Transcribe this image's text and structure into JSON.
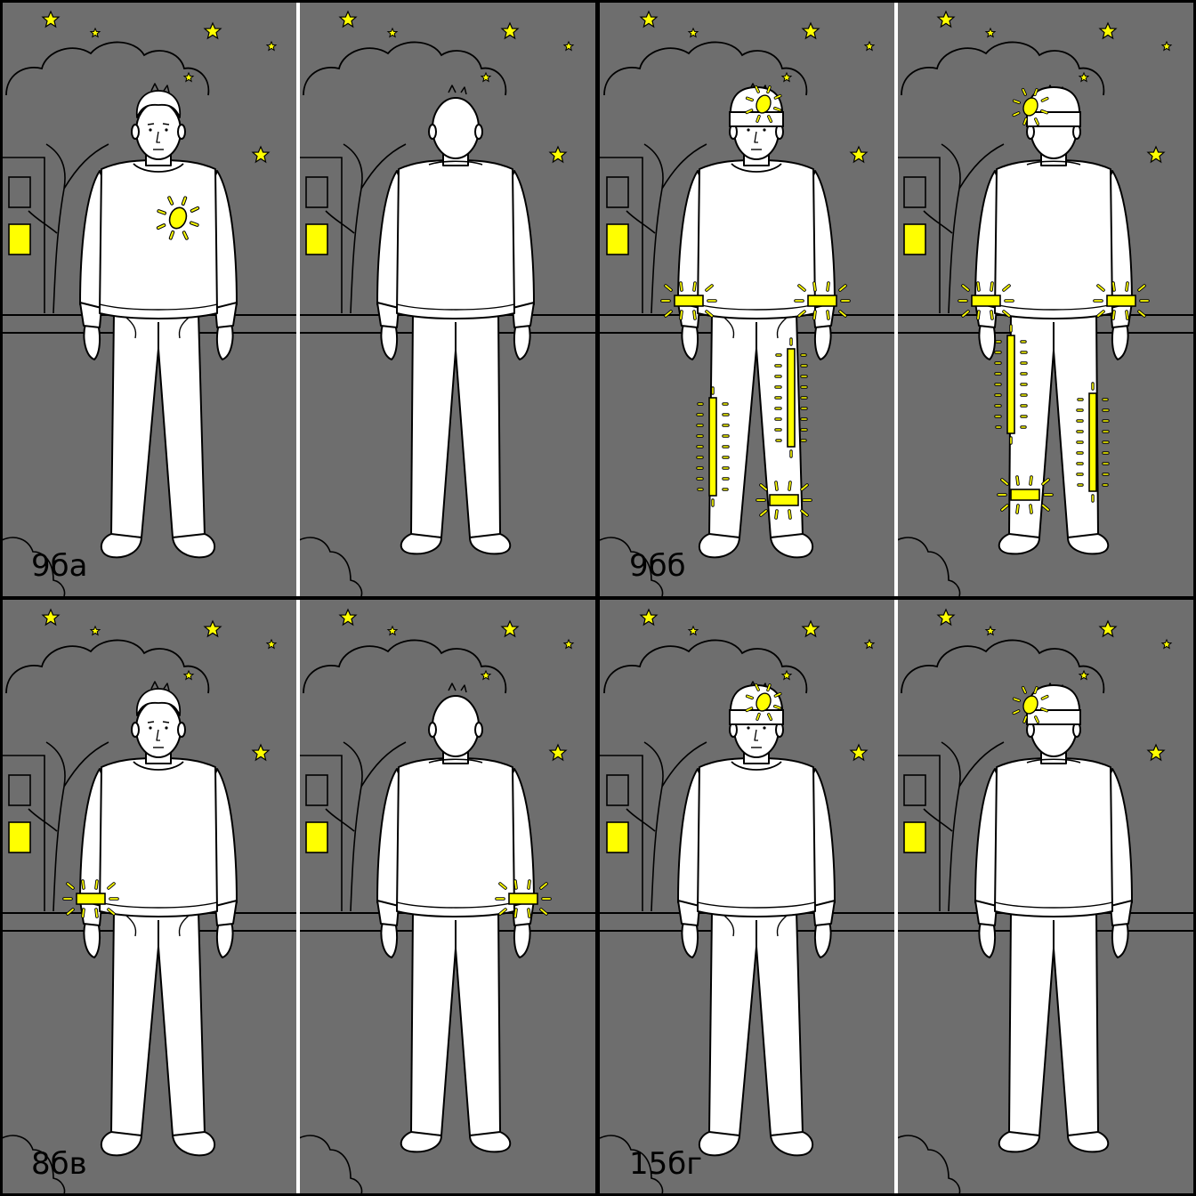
{
  "colors": {
    "background": "#6e6e6e",
    "outline": "#000000",
    "figure": "#ffffff",
    "reflector": "#ffff00",
    "divider": "#ffffff"
  },
  "panels": [
    {
      "label": "9ба",
      "items": [
        {
          "type": "chest-badge"
        }
      ]
    },
    {
      "label": "9бб",
      "items": [
        {
          "type": "headband"
        },
        {
          "type": "sleeve-bands"
        },
        {
          "type": "leg-strips"
        },
        {
          "type": "ankle-band"
        }
      ]
    },
    {
      "label": "8бв",
      "items": [
        {
          "type": "single-armband"
        }
      ]
    },
    {
      "label": "15бг",
      "items": [
        {
          "type": "headband"
        }
      ]
    }
  ]
}
